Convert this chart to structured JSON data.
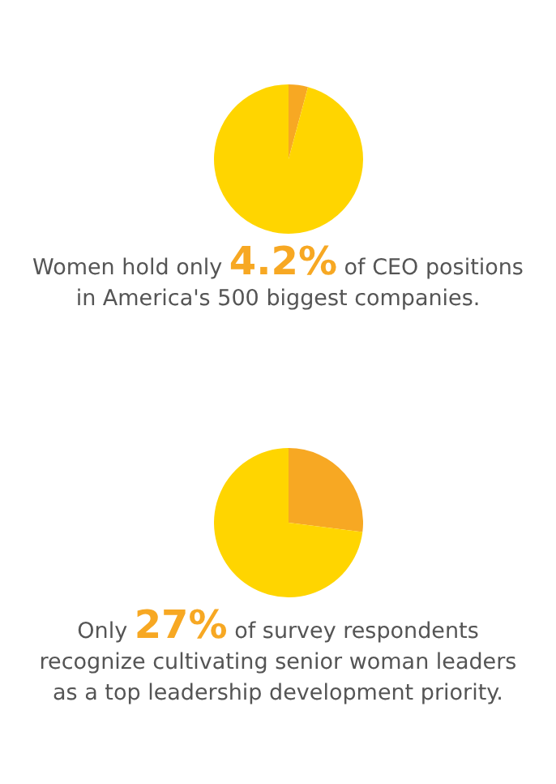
{
  "chart_data": [
    {
      "type": "pie",
      "title": "Women hold only 4.2% of CEO positions in America's 500 biggest companies.",
      "categories": [
        null,
        null
      ],
      "values": [
        4.2,
        95.8
      ],
      "colors": [
        "#f7a823",
        "#ffd500"
      ],
      "legend": false
    },
    {
      "type": "pie",
      "title": "Only 27% of survey respondents recognize cultivating senior woman leaders as a top leadership development priority.",
      "categories": [
        null,
        null
      ],
      "values": [
        27,
        73
      ],
      "colors": [
        "#f7a823",
        "#ffd500"
      ],
      "legend": false
    }
  ]
}
